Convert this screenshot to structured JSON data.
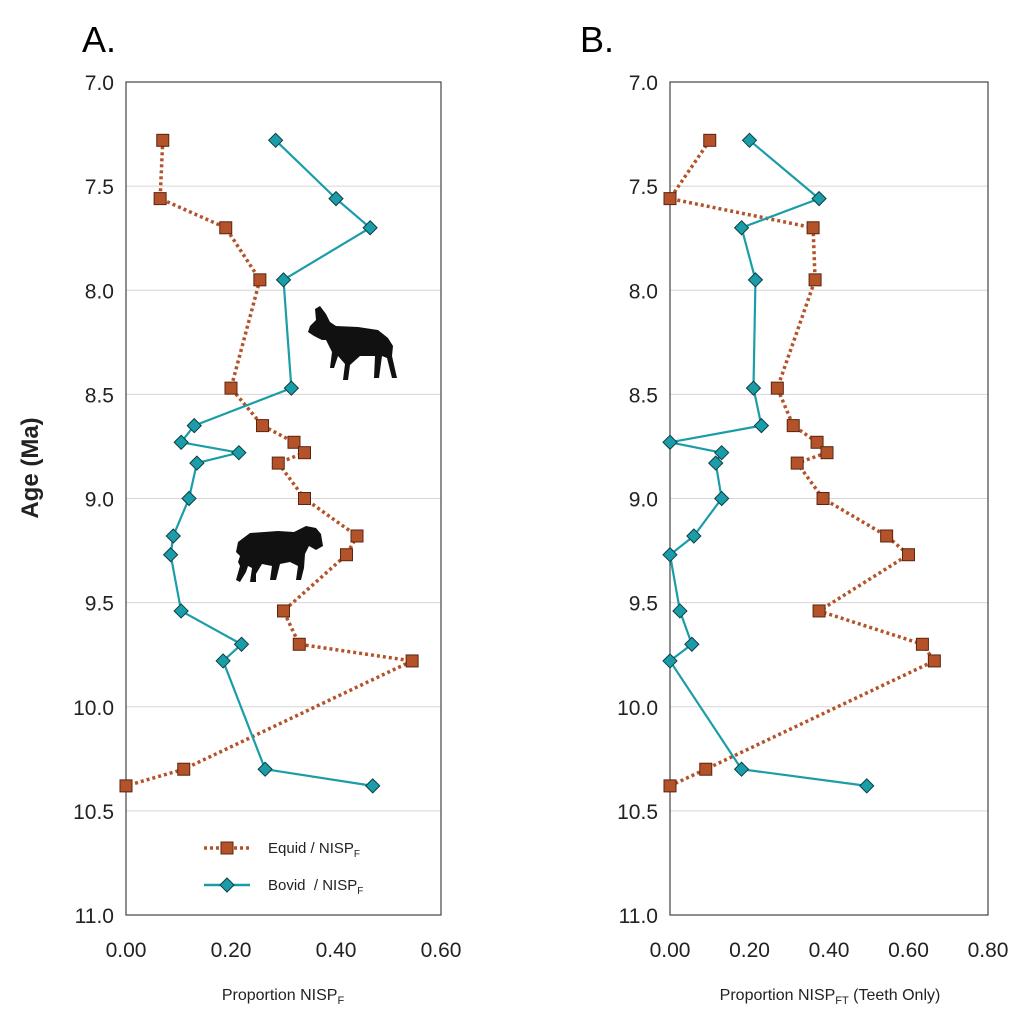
{
  "colors": {
    "equid": "#b4532a",
    "bovid": "#1a9da8",
    "grid": "#d6d6d6",
    "frame": "#444444"
  },
  "icons": [
    "goat-silhouette-icon",
    "horse-silhouette-icon"
  ],
  "ylabel": "Age (Ma)",
  "chart_data": [
    {
      "type": "line",
      "panel_label": "A.",
      "xlabel_main": "Proportion NISP",
      "xlabel_sub": "F",
      "xlabel_rest": "",
      "ylabel": "Age (Ma)",
      "xlim": [
        0,
        0.6
      ],
      "ylim": [
        7.0,
        11.0
      ],
      "y_inverted": true,
      "xticks": [
        "0.00",
        "0.20",
        "0.40",
        "0.60"
      ],
      "xtick_values": [
        0,
        0.2,
        0.4,
        0.6
      ],
      "yticks": [
        "7.0",
        "7.5",
        "8.0",
        "8.5",
        "9.0",
        "9.5",
        "10.0",
        "10.5",
        "11.0"
      ],
      "ytick_values": [
        7.0,
        7.5,
        8.0,
        8.5,
        9.0,
        9.5,
        10.0,
        10.5,
        11.0
      ],
      "grid": true,
      "legend_position": "bottom-center",
      "series": [
        {
          "name": "Equid / NISP",
          "name_sub": "F",
          "marker": "square",
          "style": "dotted",
          "points": [
            [
              0.07,
              7.28
            ],
            [
              0.065,
              7.56
            ],
            [
              0.19,
              7.7
            ],
            [
              0.255,
              7.95
            ],
            [
              0.2,
              8.47
            ],
            [
              0.26,
              8.65
            ],
            [
              0.32,
              8.73
            ],
            [
              0.34,
              8.78
            ],
            [
              0.29,
              8.83
            ],
            [
              0.34,
              9.0
            ],
            [
              0.44,
              9.18
            ],
            [
              0.42,
              9.27
            ],
            [
              0.3,
              9.54
            ],
            [
              0.33,
              9.7
            ],
            [
              0.545,
              9.78
            ],
            [
              0.11,
              10.3
            ],
            [
              0.0,
              10.38
            ]
          ]
        },
        {
          "name": "Bovid  / NISP",
          "name_sub": "F",
          "marker": "diamond",
          "style": "solid",
          "points": [
            [
              0.285,
              7.28
            ],
            [
              0.4,
              7.56
            ],
            [
              0.465,
              7.7
            ],
            [
              0.3,
              7.95
            ],
            [
              0.315,
              8.47
            ],
            [
              0.13,
              8.65
            ],
            [
              0.105,
              8.73
            ],
            [
              0.215,
              8.78
            ],
            [
              0.135,
              8.83
            ],
            [
              0.12,
              9.0
            ],
            [
              0.09,
              9.18
            ],
            [
              0.085,
              9.27
            ],
            [
              0.105,
              9.54
            ],
            [
              0.22,
              9.7
            ],
            [
              0.185,
              9.78
            ],
            [
              0.265,
              10.3
            ],
            [
              0.47,
              10.38
            ]
          ]
        }
      ]
    },
    {
      "type": "line",
      "panel_label": "B.",
      "xlabel_main": "Proportion NISP",
      "xlabel_sub": "FT",
      "xlabel_rest": " (Teeth Only)",
      "ylabel": "",
      "xlim": [
        0,
        0.8
      ],
      "ylim": [
        7.0,
        11.0
      ],
      "y_inverted": true,
      "xticks": [
        "0.00",
        "0.20",
        "0.40",
        "0.60",
        "0.80"
      ],
      "xtick_values": [
        0,
        0.2,
        0.4,
        0.6,
        0.8
      ],
      "yticks": [
        "7.0",
        "7.5",
        "8.0",
        "8.5",
        "9.0",
        "9.5",
        "10.0",
        "10.5",
        "11.0"
      ],
      "ytick_values": [
        7.0,
        7.5,
        8.0,
        8.5,
        9.0,
        9.5,
        10.0,
        10.5,
        11.0
      ],
      "grid": true,
      "series": [
        {
          "name": "Equid / NISP",
          "name_sub": "FT",
          "marker": "square",
          "style": "dotted",
          "points": [
            [
              0.1,
              7.28
            ],
            [
              0.0,
              7.56
            ],
            [
              0.36,
              7.7
            ],
            [
              0.365,
              7.95
            ],
            [
              0.27,
              8.47
            ],
            [
              0.31,
              8.65
            ],
            [
              0.37,
              8.73
            ],
            [
              0.395,
              8.78
            ],
            [
              0.32,
              8.83
            ],
            [
              0.385,
              9.0
            ],
            [
              0.545,
              9.18
            ],
            [
              0.6,
              9.27
            ],
            [
              0.375,
              9.54
            ],
            [
              0.635,
              9.7
            ],
            [
              0.665,
              9.78
            ],
            [
              0.09,
              10.3
            ],
            [
              0.0,
              10.38
            ]
          ]
        },
        {
          "name": "Bovid / NISP",
          "name_sub": "FT",
          "marker": "diamond",
          "style": "solid",
          "points": [
            [
              0.2,
              7.28
            ],
            [
              0.375,
              7.56
            ],
            [
              0.18,
              7.7
            ],
            [
              0.215,
              7.95
            ],
            [
              0.21,
              8.47
            ],
            [
              0.23,
              8.65
            ],
            [
              0.0,
              8.73
            ],
            [
              0.13,
              8.78
            ],
            [
              0.115,
              8.83
            ],
            [
              0.13,
              9.0
            ],
            [
              0.06,
              9.18
            ],
            [
              0.0,
              9.27
            ],
            [
              0.025,
              9.54
            ],
            [
              0.055,
              9.7
            ],
            [
              0.0,
              9.78
            ],
            [
              0.18,
              10.3
            ],
            [
              0.495,
              10.38
            ]
          ]
        }
      ]
    }
  ]
}
